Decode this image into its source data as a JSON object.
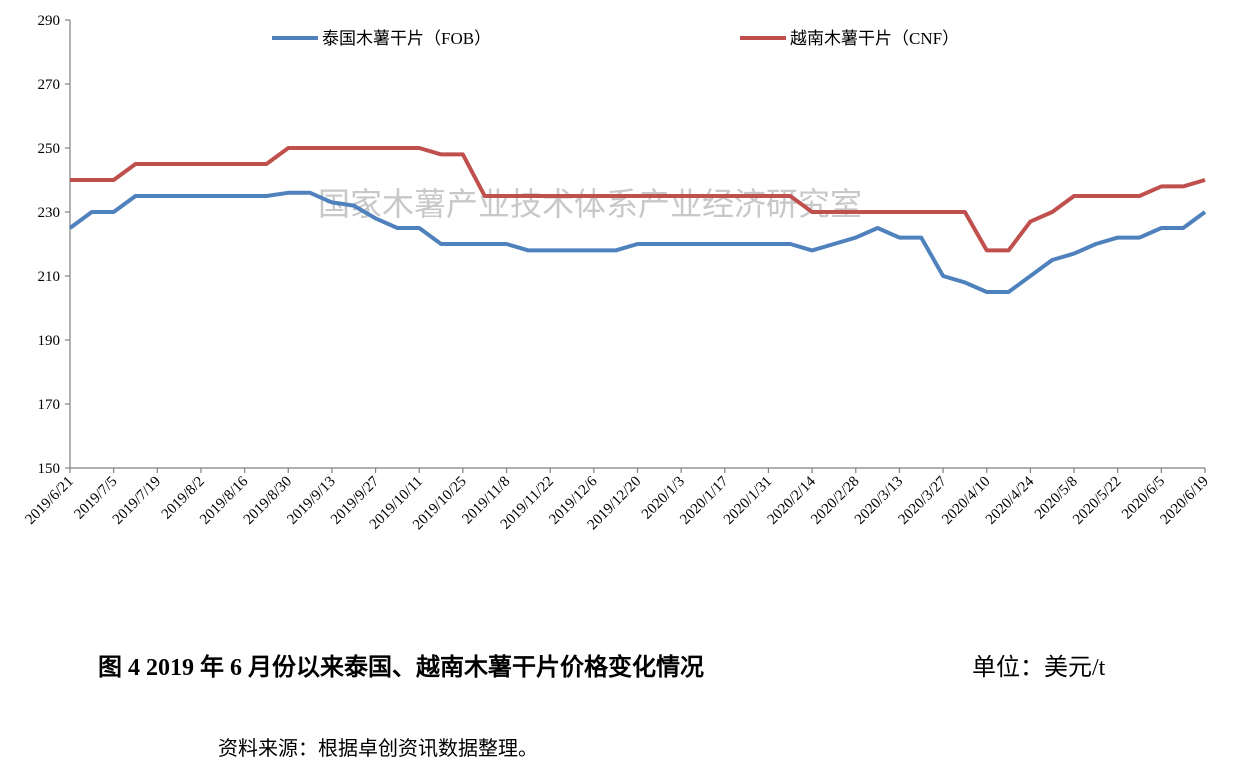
{
  "chart_data": {
    "type": "line",
    "categories": [
      "2019/6/21",
      null,
      "2019/7/5",
      null,
      "2019/7/19",
      null,
      "2019/8/2",
      null,
      "2019/8/16",
      null,
      "2019/8/30",
      null,
      "2019/9/13",
      null,
      "2019/9/27",
      null,
      "2019/10/11",
      null,
      "2019/10/25",
      null,
      "2019/11/8",
      null,
      "2019/11/22",
      null,
      "2019/12/6",
      null,
      "2019/12/20",
      null,
      "2020/1/3",
      null,
      "2020/1/17",
      null,
      "2020/1/31",
      null,
      "2020/2/14",
      null,
      "2020/2/28",
      null,
      "2020/3/13",
      null,
      "2020/3/27",
      null,
      "2020/4/10",
      null,
      "2020/4/24",
      null,
      "2020/5/8",
      null,
      "2020/5/22",
      null,
      "2020/6/5",
      null,
      "2020/6/19"
    ],
    "series": [
      {
        "name": "泰国木薯干片（FOB）",
        "color": "#4f81bd",
        "values": [
          225,
          230,
          230,
          235,
          235,
          235,
          235,
          235,
          235,
          235,
          236,
          236,
          233,
          232,
          228,
          225,
          225,
          220,
          220,
          220,
          220,
          218,
          218,
          218,
          218,
          218,
          220,
          220,
          220,
          220,
          220,
          220,
          220,
          220,
          218,
          220,
          222,
          225,
          222,
          222,
          210,
          208,
          205,
          205,
          210,
          215,
          217,
          220,
          222,
          222,
          225,
          225,
          230
        ]
      },
      {
        "name": "越南木薯干片（CNF）",
        "color": "#c0504d",
        "values": [
          240,
          240,
          240,
          245,
          245,
          245,
          245,
          245,
          245,
          245,
          250,
          250,
          250,
          250,
          250,
          250,
          250,
          248,
          248,
          235,
          235,
          235,
          235,
          235,
          235,
          235,
          235,
          235,
          235,
          235,
          235,
          235,
          235,
          235,
          230,
          230,
          230,
          230,
          230,
          230,
          230,
          230,
          218,
          218,
          227,
          230,
          235,
          235,
          235,
          235,
          238,
          238,
          240
        ]
      }
    ],
    "ylim": [
      150,
      290
    ],
    "yticks": [
      150,
      170,
      190,
      210,
      230,
      250,
      270,
      290
    ],
    "legend": "top",
    "annotations": [
      "国家木薯产业技术体系产业经济研究室"
    ],
    "caption": "图 4   2019 年 6 月份以来泰国、越南木薯干片价格变化情况",
    "unit": "单位：美元/t",
    "source": "资料来源：根据卓创资讯数据整理。"
  }
}
